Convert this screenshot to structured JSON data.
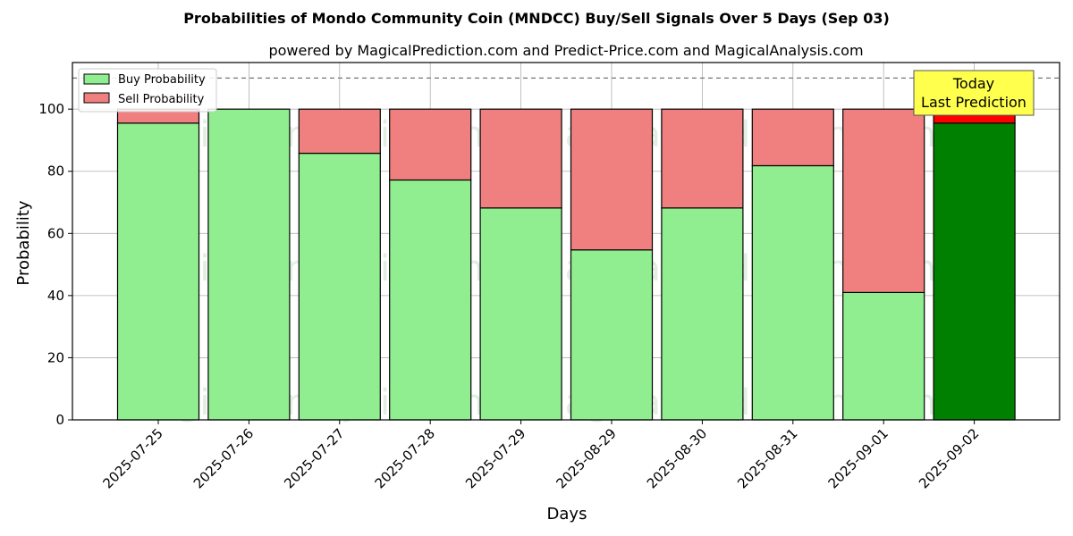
{
  "chart_data": {
    "type": "bar",
    "stacked": true,
    "title": "Probabilities of Mondo Community Coin (MNDCC) Buy/Sell Signals Over 5 Days (Sep 03)",
    "subtitle": "powered by MagicalPrediction.com and Predict-Price.com and MagicalAnalysis.com",
    "xlabel": "Days",
    "ylabel": "Probability",
    "ylim": [
      0,
      115
    ],
    "yticks": [
      0,
      20,
      40,
      60,
      80,
      100
    ],
    "reference_line": 110,
    "grid": true,
    "legend_placement": "top-left",
    "categories": [
      "2025-07-25",
      "2025-07-26",
      "2025-07-27",
      "2025-07-28",
      "2025-07-29",
      "2025-08-29",
      "2025-08-30",
      "2025-08-31",
      "2025-09-01",
      "2025-09-02"
    ],
    "series": [
      {
        "name": "Buy Probability",
        "values": [
          95.5,
          100,
          85.8,
          77.2,
          68.2,
          54.7,
          68.2,
          81.8,
          41.0,
          95.5
        ],
        "color": "#90ee90",
        "highlight_color": "#008000"
      },
      {
        "name": "Sell Probability",
        "values": [
          4.5,
          0,
          14.2,
          22.8,
          31.8,
          45.3,
          31.8,
          18.2,
          59.0,
          4.5
        ],
        "color": "#f08080",
        "highlight_color": "#ff0000"
      }
    ],
    "highlight_index": 9,
    "annotation": {
      "line1": "Today",
      "line2": "Last Prediction",
      "color": "#ffff4d"
    },
    "watermarks": [
      "MagicalAnalysis.com",
      "MagicalPrediction.com"
    ]
  }
}
